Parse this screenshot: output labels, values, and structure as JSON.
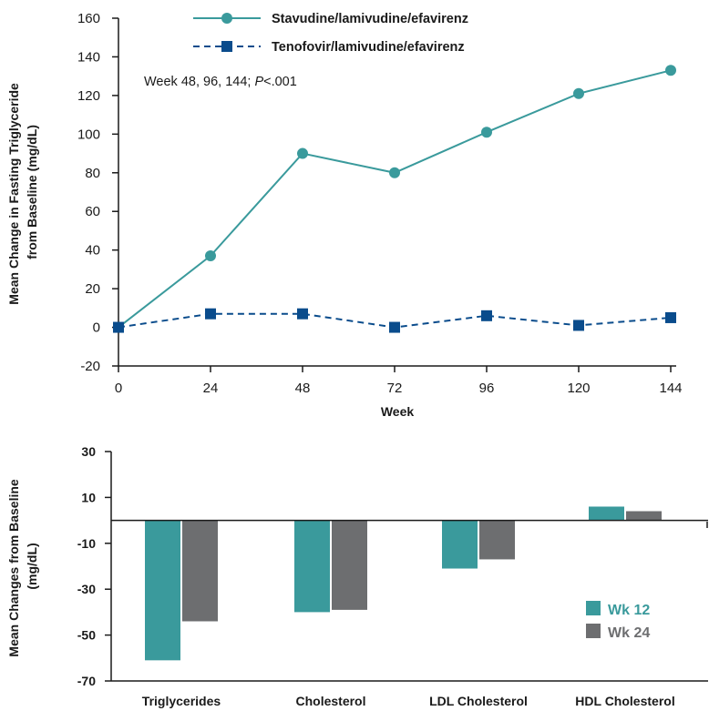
{
  "colors": {
    "teal": "#3a9a9c",
    "navy": "#0a4c8c",
    "gray": "#6d6e70",
    "axis": "#1a1a1a"
  },
  "chart_data": [
    {
      "type": "line",
      "x": [
        0,
        24,
        48,
        72,
        96,
        120,
        144
      ],
      "xlabel": "Week",
      "ylabel_lines": [
        "Mean Change in Fasting Triglyceride",
        "from Baseline (mg/dL)"
      ],
      "ylim": [
        -20,
        160
      ],
      "yticks": [
        -20,
        0,
        20,
        40,
        60,
        80,
        100,
        120,
        140,
        160
      ],
      "annotation": {
        "prefix": "Week 48, 96, 144; ",
        "italic": "P",
        "suffix": "<.001"
      },
      "series": [
        {
          "name": "Stavudine/lamivudine/efavirenz",
          "values": [
            0,
            37,
            90,
            80,
            101,
            121,
            133
          ],
          "color": "#3a9a9c",
          "marker": "circle",
          "style": "solid"
        },
        {
          "name": "Tenofovir/lamivudine/efavirenz",
          "values": [
            0,
            7,
            7,
            0,
            6,
            1,
            5
          ],
          "color": "#0a4c8c",
          "marker": "square",
          "style": "dashed"
        }
      ]
    },
    {
      "type": "bar",
      "categories": [
        "Triglycerides",
        "Cholesterol",
        "LDL Cholesterol",
        "HDL Cholesterol"
      ],
      "ylabel_lines": [
        "Mean Changes from Baseline",
        "(mg/dL)"
      ],
      "ylim": [
        -70,
        30
      ],
      "yticks": [
        30,
        10,
        -10,
        -30,
        -50,
        -70
      ],
      "legend_position": "right",
      "series": [
        {
          "name": "Wk 12",
          "values": [
            -61,
            -40,
            -21,
            6
          ],
          "color": "#3a9a9c"
        },
        {
          "name": "Wk 24",
          "values": [
            -44,
            -39,
            -17,
            4
          ],
          "color": "#6d6e70"
        }
      ]
    }
  ]
}
